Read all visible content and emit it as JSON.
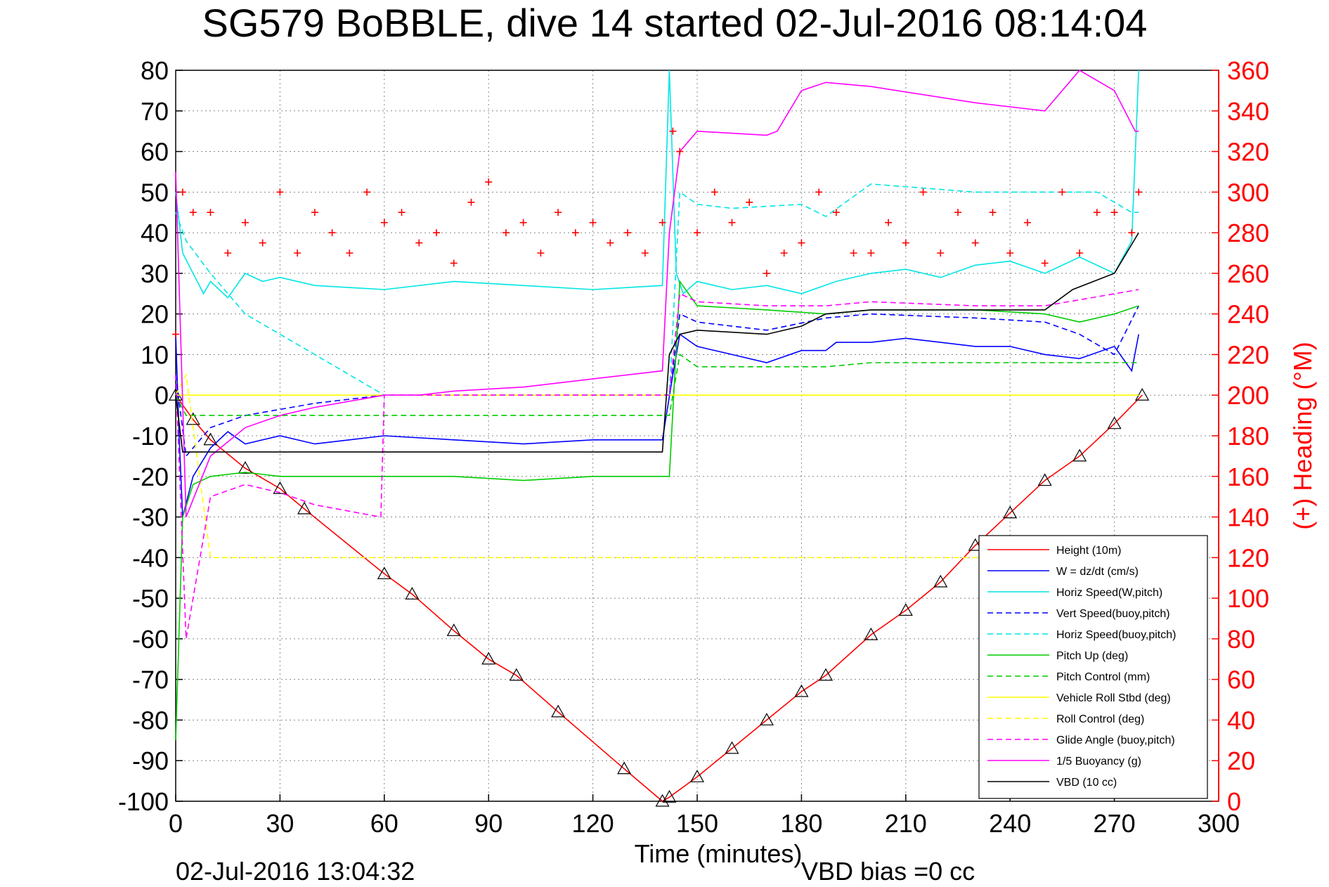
{
  "chart_data": {
    "type": "line",
    "title": "SG579 BoBBLE, dive 14 started 02-Jul-2016 08:14:04",
    "xlabel": "Time (minutes)",
    "y2label": "(+) Heading (°M)",
    "footer_left": "02-Jul-2016 13:04:32",
    "footer_right": "VBD bias =0 cc",
    "xlim": [
      0,
      300
    ],
    "ylim": [
      -100,
      80
    ],
    "y2lim": [
      0,
      360
    ],
    "xticks": [
      "0",
      "30",
      "60",
      "90",
      "120",
      "150",
      "180",
      "210",
      "240",
      "270",
      "300"
    ],
    "yticks": [
      "80",
      "70",
      "60",
      "50",
      "40",
      "30",
      "20",
      "10",
      "0",
      "-10",
      "-20",
      "-30",
      "-40",
      "-50",
      "-60",
      "-70",
      "-80",
      "-90",
      "-100"
    ],
    "y2ticks": [
      "360",
      "340",
      "320",
      "300",
      "280",
      "260",
      "240",
      "220",
      "200",
      "180",
      "160",
      "140",
      "120",
      "100",
      "80",
      "60",
      "40",
      "20",
      "0"
    ],
    "grid": true,
    "legend_position": "lower-right",
    "series": [
      {
        "name": "Height (10m)",
        "color": "#ff0000",
        "style": "solid",
        "marker": "triangle",
        "x": [
          0,
          5,
          10,
          20,
          30,
          37,
          60,
          68,
          80,
          90,
          98,
          110,
          129,
          140,
          142,
          150,
          160,
          170,
          180,
          187,
          200,
          210,
          220,
          230,
          240,
          250,
          260,
          270,
          278
        ],
        "y": [
          0,
          -6,
          -11,
          -18,
          -23,
          -28,
          -44,
          -49,
          -58,
          -65,
          -69,
          -78,
          -92,
          -100,
          -99,
          -94,
          -87,
          -80,
          -73,
          -69,
          -59,
          -53,
          -46,
          -37,
          -29,
          -21,
          -15,
          -7,
          0
        ]
      },
      {
        "name": "W = dz/dt (cm/s)",
        "color": "#0000ff",
        "style": "solid",
        "x": [
          0,
          1,
          2,
          5,
          10,
          15,
          20,
          30,
          40,
          60,
          80,
          100,
          120,
          140,
          143,
          145,
          150,
          160,
          170,
          180,
          187,
          190,
          200,
          210,
          220,
          230,
          240,
          250,
          260,
          270,
          275,
          277
        ],
        "y": [
          15,
          -10,
          -30,
          -20,
          -13,
          -9,
          -12,
          -10,
          -12,
          -10,
          -11,
          -12,
          -11,
          -11,
          5,
          15,
          12,
          10,
          8,
          11,
          11,
          13,
          13,
          14,
          13,
          12,
          12,
          10,
          9,
          12,
          6,
          15
        ]
      },
      {
        "name": "Horiz Speed(W,pitch)",
        "color": "#00e5e5",
        "style": "solid",
        "x": [
          0,
          2,
          5,
          8,
          10,
          15,
          20,
          25,
          30,
          40,
          60,
          80,
          100,
          120,
          140,
          142,
          144,
          146,
          150,
          160,
          170,
          180,
          190,
          200,
          210,
          220,
          230,
          240,
          250,
          260,
          270,
          275,
          277
        ],
        "y": [
          50,
          35,
          30,
          25,
          28,
          24,
          30,
          28,
          29,
          27,
          26,
          28,
          27,
          26,
          27,
          80,
          30,
          25,
          28,
          26,
          27,
          25,
          28,
          30,
          31,
          29,
          32,
          33,
          30,
          34,
          30,
          38,
          80
        ]
      },
      {
        "name": "Vert Speed(buoy,pitch)",
        "color": "#0000ff",
        "style": "dashed",
        "x": [
          0,
          3,
          10,
          20,
          40,
          60,
          80,
          100,
          120,
          140,
          142,
          145,
          150,
          170,
          187,
          200,
          230,
          250,
          260,
          270,
          277
        ],
        "y": [
          5,
          -15,
          -8,
          -5,
          -2,
          0,
          0,
          0,
          0,
          0,
          0,
          20,
          18,
          16,
          19,
          20,
          19,
          18,
          15,
          10,
          22
        ]
      },
      {
        "name": "Horiz Speed(buoy,pitch)",
        "color": "#00e5e5",
        "style": "dashed",
        "x": [
          0,
          3,
          10,
          20,
          30,
          40,
          50,
          60,
          80,
          100,
          120,
          140,
          142,
          145,
          150,
          160,
          180,
          187,
          200,
          230,
          250,
          265,
          275,
          277
        ],
        "y": [
          45,
          38,
          30,
          20,
          15,
          10,
          5,
          0,
          0,
          0,
          0,
          0,
          0,
          50,
          47,
          46,
          47,
          44,
          52,
          50,
          50,
          50,
          45,
          45
        ]
      },
      {
        "name": "Pitch Up (deg)",
        "color": "#00cc00",
        "style": "solid",
        "x": [
          0,
          2,
          5,
          10,
          20,
          30,
          40,
          60,
          80,
          100,
          120,
          140,
          142,
          145,
          150,
          170,
          187,
          200,
          230,
          250,
          260,
          270,
          277
        ],
        "y": [
          -85,
          -30,
          -22,
          -20,
          -19,
          -20,
          -20,
          -20,
          -20,
          -21,
          -20,
          -20,
          -20,
          28,
          22,
          21,
          20,
          21,
          21,
          20,
          18,
          20,
          22
        ]
      },
      {
        "name": "Pitch Control (mm)",
        "color": "#00cc00",
        "style": "dashed",
        "x": [
          0,
          3,
          10,
          60,
          140,
          142,
          145,
          150,
          187,
          200,
          250,
          277
        ],
        "y": [
          0,
          -5,
          -5,
          -5,
          -5,
          -5,
          10,
          7,
          7,
          8,
          8,
          8
        ]
      },
      {
        "name": "Vehicle Roll Stbd (deg)",
        "color": "#ffff00",
        "style": "solid",
        "x": [
          0,
          5,
          10,
          20,
          40,
          60,
          80,
          100,
          120,
          140,
          145,
          160,
          180,
          200,
          220,
          240,
          260,
          277
        ],
        "y": [
          0,
          0,
          0,
          0,
          0,
          0,
          0,
          0,
          0,
          0,
          0,
          0,
          0,
          0,
          0,
          0,
          0,
          0
        ]
      },
      {
        "name": "Roll Control (deg)",
        "color": "#ffff00",
        "style": "dashed",
        "x": [
          0,
          3,
          10,
          60,
          140,
          145,
          200,
          277
        ],
        "y": [
          0,
          5,
          -40,
          -40,
          -40,
          -40,
          -40,
          -40
        ]
      },
      {
        "name": "Glide Angle (buoy,pitch)",
        "color": "#ff00ff",
        "style": "dashed",
        "x": [
          0,
          3,
          10,
          20,
          30,
          40,
          59,
          60,
          70,
          80,
          100,
          120,
          140,
          142,
          145,
          150,
          170,
          187,
          200,
          230,
          250,
          277
        ],
        "y": [
          5,
          -60,
          -25,
          -22,
          -24,
          -27,
          -30,
          0,
          0,
          0,
          0,
          0,
          0,
          0,
          25,
          23,
          22,
          22,
          23,
          22,
          22,
          26
        ]
      },
      {
        "name": "1/5 Buoyancy (g)",
        "color": "#ff00ff",
        "style": "solid",
        "x": [
          0,
          3,
          10,
          20,
          30,
          40,
          60,
          70,
          80,
          100,
          120,
          140,
          142,
          145,
          150,
          170,
          173,
          180,
          187,
          200,
          230,
          250,
          260,
          270,
          276,
          277
        ],
        "y": [
          55,
          -30,
          -15,
          -8,
          -5,
          -3,
          0,
          0,
          1,
          2,
          4,
          6,
          40,
          60,
          65,
          64,
          65,
          75,
          77,
          76,
          72,
          70,
          80,
          75,
          65,
          65
        ]
      },
      {
        "name": "VBD (10 cc)",
        "color": "#000000",
        "style": "solid",
        "x": [
          0,
          2,
          5,
          40,
          60,
          100,
          140,
          142,
          145,
          150,
          170,
          180,
          187,
          200,
          230,
          250,
          258,
          270,
          277
        ],
        "y": [
          0,
          -14,
          -14,
          -14,
          -14,
          -14,
          -14,
          10,
          15,
          16,
          15,
          17,
          20,
          21,
          21,
          21,
          26,
          30,
          40
        ]
      },
      {
        "name": "Heading",
        "color": "#ff0000",
        "style": "markers",
        "marker": "plus",
        "axis": "right",
        "x": [
          0,
          2,
          5,
          10,
          15,
          20,
          25,
          30,
          35,
          40,
          45,
          50,
          55,
          60,
          65,
          70,
          75,
          80,
          85,
          90,
          95,
          100,
          105,
          110,
          115,
          120,
          125,
          130,
          135,
          140,
          143,
          145,
          150,
          155,
          160,
          165,
          170,
          175,
          180,
          185,
          190,
          195,
          200,
          205,
          210,
          215,
          220,
          225,
          230,
          235,
          240,
          245,
          250,
          255,
          260,
          265,
          270,
          275,
          277
        ],
        "y": [
          230,
          300,
          290,
          290,
          270,
          285,
          275,
          300,
          270,
          290,
          280,
          270,
          300,
          285,
          290,
          275,
          280,
          265,
          295,
          305,
          280,
          285,
          270,
          290,
          280,
          285,
          275,
          280,
          270,
          285,
          330,
          320,
          280,
          300,
          285,
          295,
          260,
          270,
          275,
          300,
          290,
          270,
          270,
          285,
          275,
          300,
          270,
          290,
          275,
          290,
          270,
          285,
          265,
          300,
          270,
          290,
          290,
          280,
          300
        ]
      }
    ]
  }
}
